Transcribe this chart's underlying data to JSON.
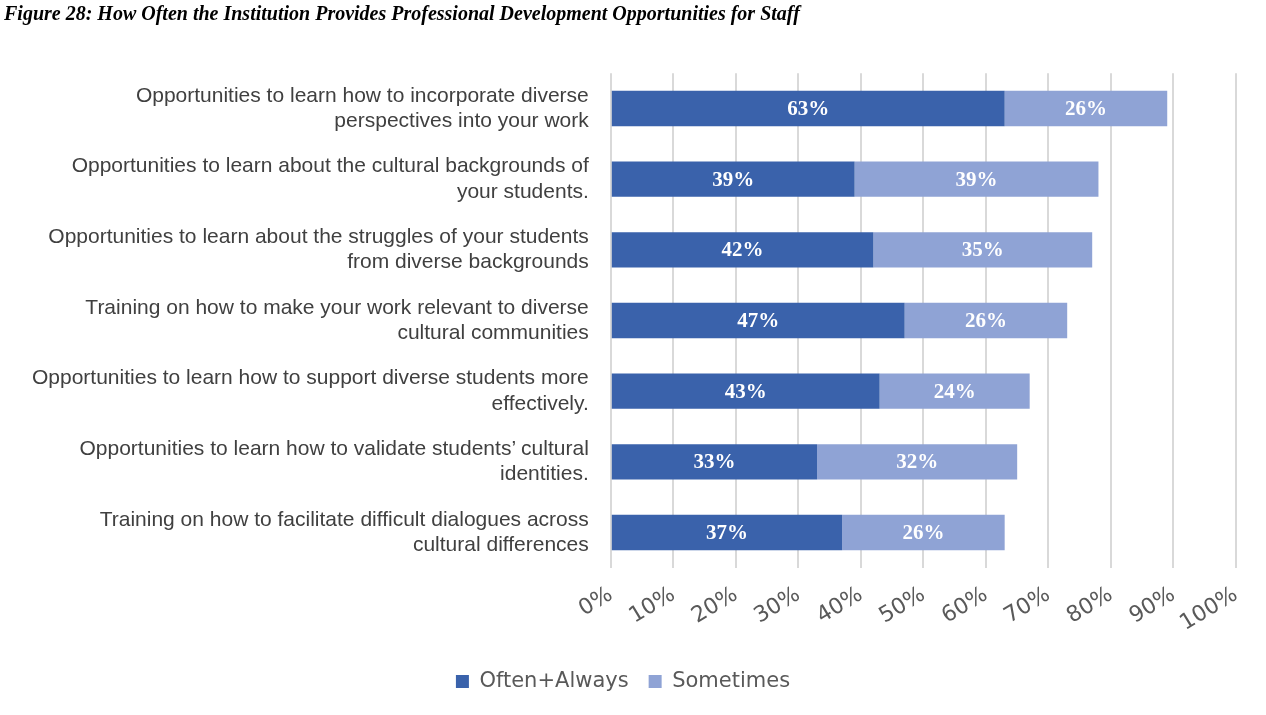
{
  "chart_data": {
    "type": "bar",
    "orientation": "horizontal",
    "stacked": true,
    "title": "Figure 28: How Often the Institution Provides Professional Development Opportunities for Staff",
    "categories": [
      "Opportunities to learn how to incorporate diverse perspectives into your work",
      "Opportunities to learn about the cultural backgrounds of your students.",
      "Opportunities to learn about the struggles of your students from diverse backgrounds",
      "Training on how to make your work relevant to diverse cultural communities",
      "Opportunities to learn how to support diverse students more effectively.",
      "Opportunities to learn how to validate students’ cultural identities.",
      "Training on how to facilitate difficult dialogues across cultural differences"
    ],
    "series": [
      {
        "name": "Often+Always",
        "color": "#3a62ab",
        "values": [
          63,
          39,
          42,
          47,
          43,
          33,
          37
        ],
        "value_labels": [
          "63%",
          "39%",
          "42%",
          "47%",
          "43%",
          "33%",
          "37%"
        ]
      },
      {
        "name": "Sometimes",
        "color": "#8fa3d5",
        "values": [
          26,
          39,
          35,
          26,
          24,
          32,
          26
        ],
        "value_labels": [
          "26%",
          "39%",
          "35%",
          "26%",
          "24%",
          "32%",
          "26%"
        ]
      }
    ],
    "xlim": [
      0,
      100
    ],
    "xticks": [
      {
        "value": 0,
        "label": "0%"
      },
      {
        "value": 10,
        "label": "10%"
      },
      {
        "value": 20,
        "label": "20%"
      },
      {
        "value": 30,
        "label": "30%"
      },
      {
        "value": 40,
        "label": "40%"
      },
      {
        "value": 50,
        "label": "50%"
      },
      {
        "value": 60,
        "label": "60%"
      },
      {
        "value": 70,
        "label": "70%"
      },
      {
        "value": 80,
        "label": "80%"
      },
      {
        "value": 90,
        "label": "90%"
      },
      {
        "value": 100,
        "label": "100%"
      }
    ],
    "grid": "x",
    "legend": "bottom"
  }
}
